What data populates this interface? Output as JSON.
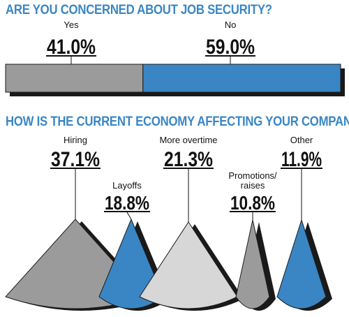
{
  "headline_1": "ARE YOU CONCERNED ABOUT JOB SECURITY?",
  "headline_2": "HOW IS THE CURRENT ECONOMY AFFECTING YOUR COMPANY?",
  "colors": {
    "heading": "#3a86c4",
    "blue": "#3a86c4",
    "gray": "#9b9b9b",
    "light_gray": "#d7d7d7",
    "shadow": "#1a1a1a"
  },
  "chart_data": [
    {
      "type": "bar",
      "orientation": "horizontal-stacked",
      "title": "ARE YOU CONCERNED ABOUT JOB SECURITY?",
      "categories": [
        "Yes",
        "No"
      ],
      "values": [
        41.0,
        59.0
      ],
      "value_labels": [
        "41.0%",
        "59.0%"
      ],
      "unit": "%",
      "colors": [
        "#9b9b9b",
        "#3a86c4"
      ]
    },
    {
      "type": "pie",
      "style": "separated wedges",
      "title": "HOW IS THE CURRENT ECONOMY AFFECTING YOUR COMPANY?",
      "categories": [
        "Hiring",
        "Layoffs",
        "More overtime",
        "Promotions/ raises",
        "Other"
      ],
      "label_lines": [
        [
          "Hiring"
        ],
        [
          "Layoffs"
        ],
        [
          "More overtime"
        ],
        [
          "Promotions/",
          "raises"
        ],
        [
          "Other"
        ]
      ],
      "values": [
        37.1,
        18.8,
        21.3,
        10.8,
        11.9
      ],
      "value_labels": [
        "37.1%",
        "18.8%",
        "21.3%",
        "10.8%",
        "11.9%"
      ],
      "unit": "%",
      "colors": [
        "#9b9b9b",
        "#3a86c4",
        "#d7d7d7",
        "#9b9b9b",
        "#3a86c4"
      ]
    }
  ]
}
